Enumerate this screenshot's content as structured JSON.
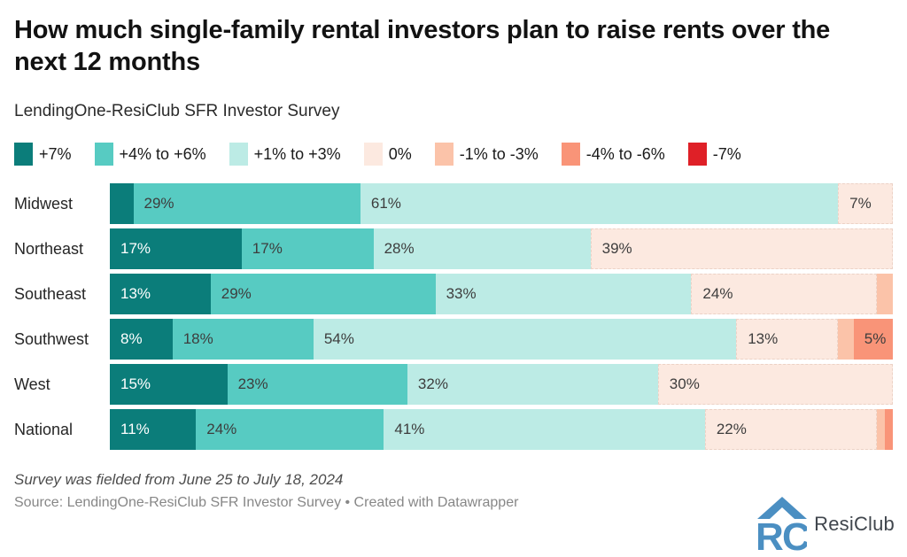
{
  "header": {
    "title": "How much single-family rental investors plan to raise rents over the next 12 months",
    "subtitle": "LendingOne-ResiClub SFR Investor Survey"
  },
  "chart_data": {
    "type": "bar",
    "stacked": true,
    "orientation": "horizontal",
    "title": "How much single-family rental investors plan to raise rents over the next 12 months",
    "subtitle": "LendingOne-ResiClub SFR Investor Survey",
    "unit": "%",
    "legend_position": "top",
    "grid": false,
    "categories": [
      "Midwest",
      "Northeast",
      "Southeast",
      "Southwest",
      "West",
      "National"
    ],
    "series": [
      {
        "name": "+7%",
        "color": "#0b7d7a",
        "values": [
          3,
          17,
          13,
          8,
          15,
          11
        ]
      },
      {
        "name": "+4% to +6%",
        "color": "#57cbc2",
        "values": [
          29,
          17,
          29,
          18,
          23,
          24
        ]
      },
      {
        "name": "+1% to +3%",
        "color": "#bcebe5",
        "values": [
          61,
          28,
          33,
          54,
          32,
          41
        ]
      },
      {
        "name": "0%",
        "color": "#fce9e0",
        "values": [
          7,
          39,
          24,
          13,
          30,
          22
        ]
      },
      {
        "name": "-1% to -3%",
        "color": "#fbc3a9",
        "values": [
          0,
          0,
          2,
          2,
          0,
          1
        ]
      },
      {
        "name": "-4% to -6%",
        "color": "#f99478",
        "values": [
          0,
          0,
          0,
          5,
          0,
          1
        ]
      },
      {
        "name": "-7%",
        "color": "#df2027",
        "values": [
          0,
          0,
          0,
          0,
          0,
          0
        ]
      }
    ],
    "label_threshold": 5,
    "white_label_series": "+7%",
    "dashed_outline_series": "0%"
  },
  "footer": {
    "note": "Survey was fielded from June 25 to July 18, 2024",
    "source": "Source: LendingOne-ResiClub SFR Investor Survey • Created with Datawrapper",
    "logo_text": "ResiClub",
    "logo_color": "#4b8fc2"
  }
}
